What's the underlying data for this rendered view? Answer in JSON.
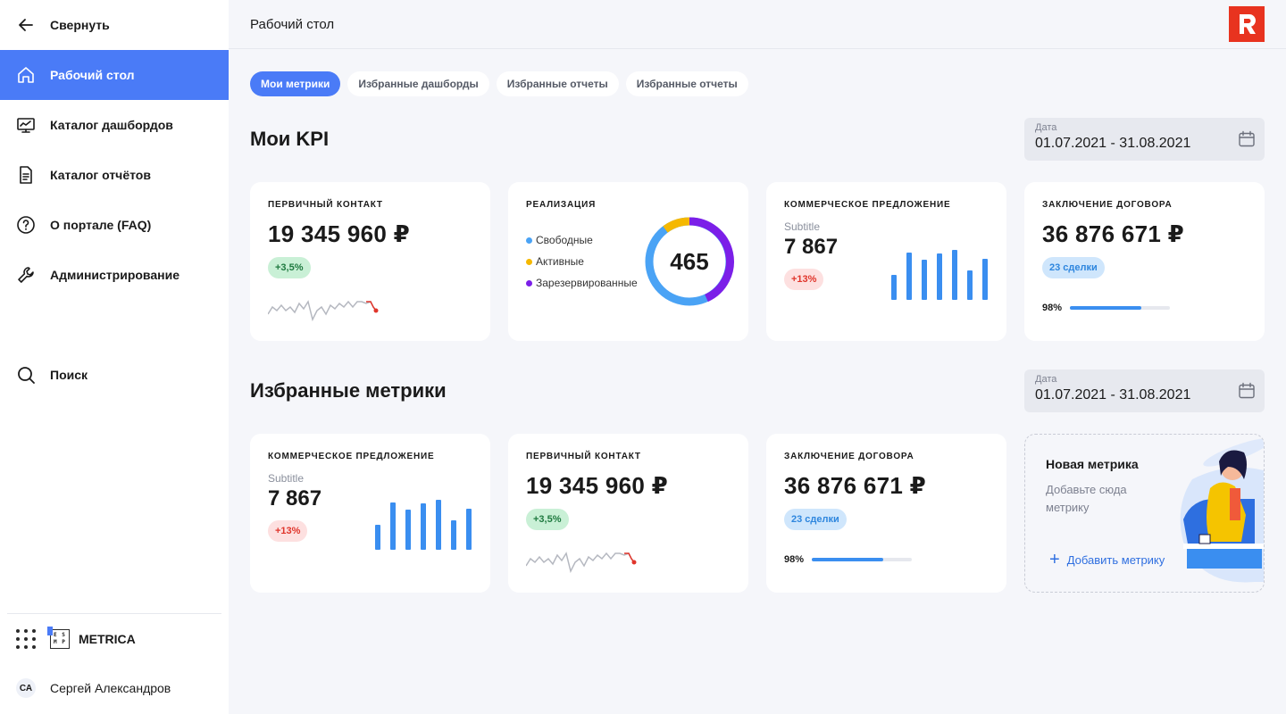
{
  "sidebar": {
    "collapse_label": "Свернуть",
    "items": [
      {
        "label": "Рабочий стол",
        "icon": "home-icon"
      },
      {
        "label": "Каталог дашбордов",
        "icon": "dashboard-icon"
      },
      {
        "label": "Каталог отчётов",
        "icon": "report-icon"
      },
      {
        "label": "О портале (FAQ)",
        "icon": "help-icon"
      },
      {
        "label": "Администрирование",
        "icon": "wrench-icon"
      }
    ],
    "search_label": "Поиск",
    "brand": {
      "logo_text": "E S M P",
      "name": "METRICA"
    },
    "user": {
      "initials": "СА",
      "name": "Сергей Александров"
    }
  },
  "header": {
    "title": "Рабочий стол"
  },
  "tabs": [
    "Мои метрики",
    "Избранные дашборды",
    "Избранные отчеты",
    "Избранные отчеты"
  ],
  "sections": {
    "kpi": {
      "title": "Мои KPI",
      "date_label": "Дата",
      "date_value": "01.07.2021 - 31.08.2021"
    },
    "favorites": {
      "title": "Избранные метрики",
      "date_label": "Дата",
      "date_value": "01.07.2021 - 31.08.2021"
    }
  },
  "kpi_cards": {
    "contact": {
      "title": "Первичный контакт",
      "value": "19 345 960 ₽",
      "badge": "+3,5%"
    },
    "realization": {
      "title": "Реализация",
      "legend": [
        "Свободные",
        "Активные",
        "Зарезервированные"
      ],
      "colors": [
        "#4aa3f5",
        "#f5b800",
        "#7b1fe8"
      ],
      "total": "465"
    },
    "offer": {
      "title": "Коммерческое предложение",
      "subtitle": "Subtitle",
      "value": "7 867",
      "badge": "+13%"
    },
    "contract": {
      "title": "Заключение договора",
      "value": "36 876 671 ₽",
      "badge": "23 сделки",
      "progress_label": "98%"
    }
  },
  "fav_cards": {
    "offer": {
      "title": "Коммерческое предложение",
      "subtitle": "Subtitle",
      "value": "7 867",
      "badge": "+13%"
    },
    "contact": {
      "title": "Первичный контакт",
      "value": "19 345 960 ₽",
      "badge": "+3,5%"
    },
    "contract": {
      "title": "Заключение договора",
      "value": "36 876 671 ₽",
      "badge": "23 сделки",
      "progress_label": "98%"
    }
  },
  "new_metric": {
    "title": "Новая метрика",
    "description": "Добавьте сюда метрику",
    "add_label": "Добавить метрику"
  },
  "colors": {
    "accent": "#4a7bf7",
    "bar": "#3a8ef0",
    "logo": "#e8331f"
  }
}
